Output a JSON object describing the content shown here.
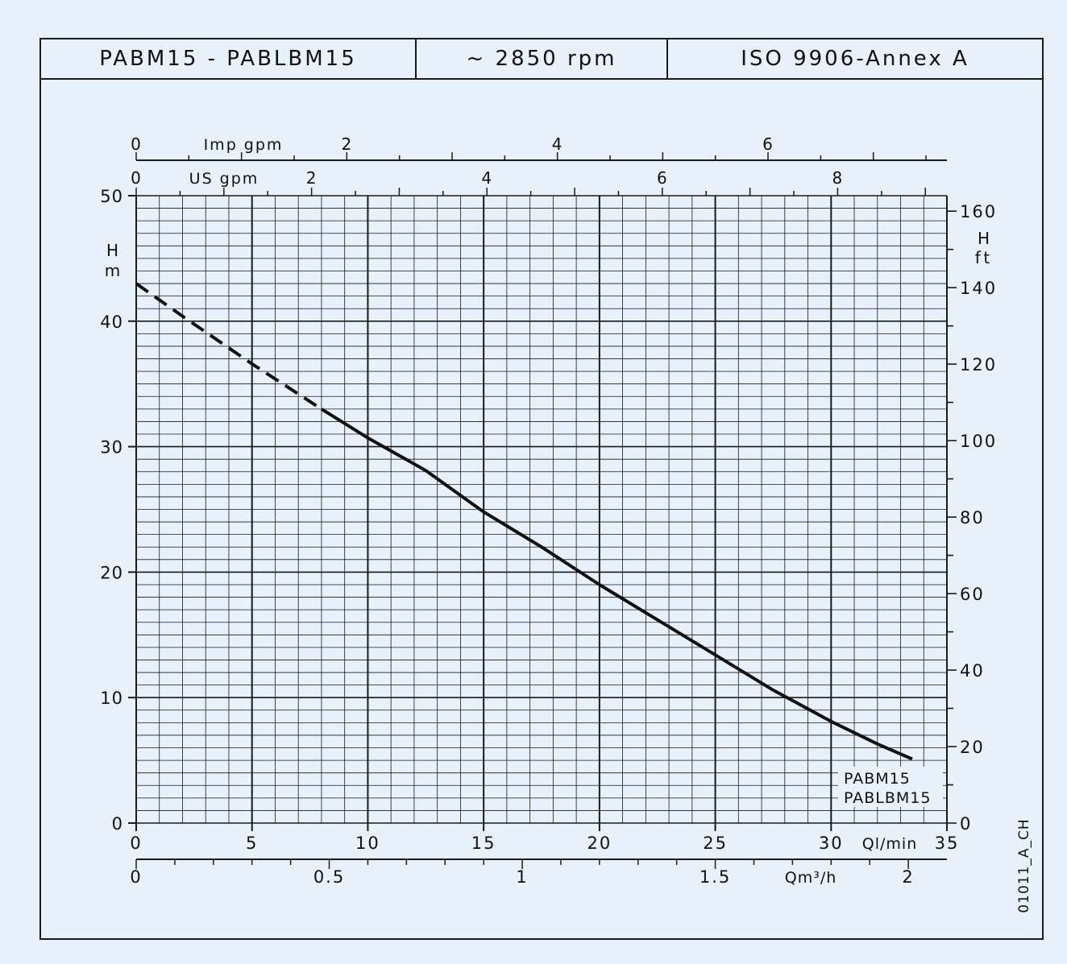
{
  "header": {
    "model": "PABM15 - PABLBM15",
    "speed": "~ 2850 rpm",
    "standard": "ISO 9906-Annex A"
  },
  "chart_data": {
    "type": "line",
    "series": [
      {
        "name": "PABM15 PABLBM15",
        "x_unit": "l/min",
        "y_unit": "m",
        "points": [
          [
            0,
            43
          ],
          [
            2,
            40.4
          ],
          [
            5,
            36.6
          ],
          [
            8,
            33.0
          ],
          [
            10,
            30.7
          ],
          [
            12.5,
            28.1
          ],
          [
            15,
            24.8
          ],
          [
            17.5,
            22.0
          ],
          [
            20,
            19.0
          ],
          [
            22.5,
            16.2
          ],
          [
            25,
            13.4
          ],
          [
            27.5,
            10.6
          ],
          [
            30,
            8.1
          ],
          [
            32,
            6.3
          ],
          [
            33.5,
            5.1
          ]
        ],
        "dashed_until_x": 8
      }
    ],
    "curve_label_lines": [
      "PABM15",
      "PABLBM15"
    ],
    "axes": {
      "ql_min": {
        "label": "Ql/min",
        "range": [
          0,
          35
        ],
        "ticks": [
          "0",
          "5",
          "10",
          "15",
          "20",
          "25",
          "30",
          "35"
        ]
      },
      "qm3h": {
        "label": "Qm³/h",
        "range": [
          0,
          2.1
        ],
        "ticks": [
          "0",
          "0.5",
          "1",
          "1.5",
          "2"
        ]
      },
      "us_gpm": {
        "label": "US gpm",
        "ticks": [
          "0",
          "2",
          "4",
          "6",
          "8"
        ]
      },
      "imp_gpm": {
        "label": "Imp gpm",
        "ticks": [
          "0",
          "2",
          "4",
          "6"
        ]
      },
      "h_m": {
        "label_top": "H",
        "label_bottom": "m",
        "range": [
          0,
          50
        ],
        "ticks": [
          "0",
          "10",
          "20",
          "30",
          "40",
          "50"
        ]
      },
      "h_ft": {
        "label_top": "H",
        "label_bottom": "ft",
        "ticks": [
          "0",
          "20",
          "40",
          "60",
          "80",
          "100",
          "120",
          "140",
          "160"
        ]
      }
    },
    "grid": true,
    "code": "01011_A_CH"
  }
}
